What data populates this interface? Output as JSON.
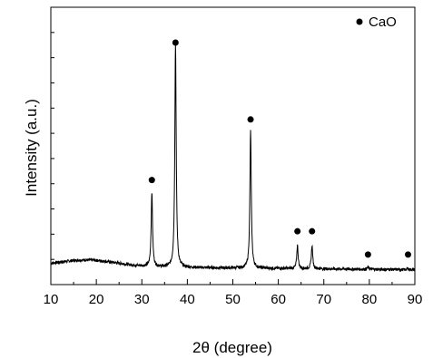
{
  "chart_data": {
    "type": "line",
    "xlabel": "2θ (degree)",
    "ylabel": "Intensity (a.u.)",
    "xlim": [
      10,
      90
    ],
    "x_ticks": [
      "10",
      "20",
      "30",
      "40",
      "50",
      "60",
      "70",
      "80",
      "90"
    ],
    "y_ticks_labeled": false,
    "grid": false,
    "legend": {
      "placement": "top-right",
      "label": "CaO",
      "marker": "filled-circle"
    },
    "series": [
      {
        "name": "CaO",
        "baseline": 4,
        "peaks": [
          {
            "x": 32.2,
            "y": 36
          },
          {
            "x": 37.4,
            "y": 100
          },
          {
            "x": 53.9,
            "y": 63
          },
          {
            "x": 64.2,
            "y": 14
          },
          {
            "x": 67.4,
            "y": 14
          },
          {
            "x": 79.7,
            "y": 5
          },
          {
            "x": 88.5,
            "y": 4.5
          }
        ],
        "marked_peaks": [
          {
            "x": 32.2,
            "y": 41
          },
          {
            "x": 37.4,
            "y": 100
          },
          {
            "x": 53.9,
            "y": 67
          },
          {
            "x": 64.2,
            "y": 19
          },
          {
            "x": 67.4,
            "y": 19
          },
          {
            "x": 79.7,
            "y": 9
          },
          {
            "x": 88.5,
            "y": 9
          }
        ]
      }
    ]
  }
}
